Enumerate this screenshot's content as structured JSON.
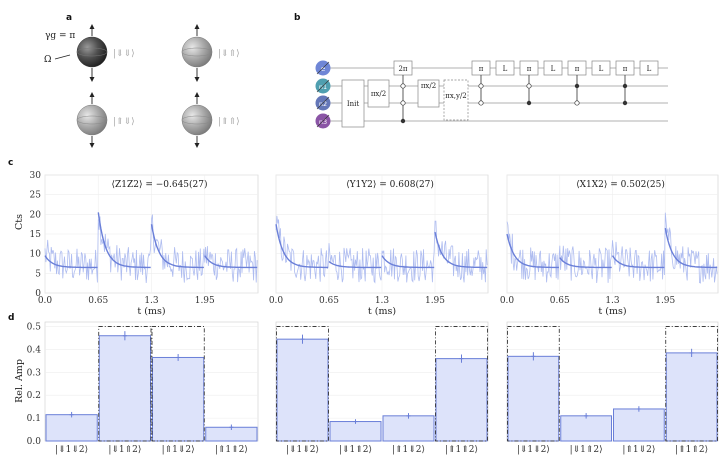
{
  "panels": {
    "a": "a",
    "b": "b",
    "c": "c",
    "d": "d"
  },
  "panel_a": {
    "gamma_label": "γg = π",
    "omega_label": "Ω",
    "kets": [
      "|⇓⇓⟩",
      "|⇓⇑⟩",
      "|⇑⇓⟩",
      "|⇑⇑⟩"
    ],
    "colors": {
      "dark_sphere": "#4a4a4a",
      "grey_sphere": "#9a9a9a"
    }
  },
  "panel_b": {
    "qubits": [
      "e",
      "n1",
      "n2",
      "n3"
    ],
    "qubit_colors": [
      "#6f86d6",
      "#4f9fb0",
      "#6477b8",
      "#8b55a6"
    ],
    "gates": {
      "init": "Init",
      "pi_x_half": "πx/2",
      "two_pi": "2π",
      "pi_x_half_2": "πx/2",
      "pi_xy_half": "πx,y/2",
      "pi": "π",
      "L": "L"
    }
  },
  "chart_data": [
    {
      "type": "line",
      "panel": "c",
      "annotation": "⟨Z1Z2⟩ = −0.645(27)",
      "xlabel": "t (ms)",
      "ylabel": "Cts",
      "xticks": [
        "0.0",
        "0.65",
        "1.3",
        "1.95"
      ],
      "yticks": [
        0,
        5,
        10,
        15,
        20,
        25,
        30
      ],
      "xlim": [
        0,
        2.6
      ],
      "ylim": [
        0,
        30
      ],
      "segments": [
        {
          "start": 0.0,
          "peak": 9.5,
          "baseline": 6.5
        },
        {
          "start": 0.65,
          "peak": 20.5,
          "baseline": 6.5
        },
        {
          "start": 1.3,
          "peak": 17.5,
          "baseline": 6.5
        },
        {
          "start": 1.95,
          "peak": 9.5,
          "baseline": 6.5
        }
      ],
      "colors": {
        "raw": "#aebcf0",
        "fit": "#6a7fd8"
      }
    },
    {
      "type": "line",
      "panel": "c",
      "annotation": "⟨Y1Y2⟩ = 0.608(27)",
      "xlabel": "t (ms)",
      "xticks": [
        "0.0",
        "0.65",
        "1.3",
        "1.95"
      ],
      "xlim": [
        0,
        2.6
      ],
      "ylim": [
        0,
        30
      ],
      "segments": [
        {
          "start": 0.0,
          "peak": 17.5,
          "baseline": 6.5
        },
        {
          "start": 0.65,
          "peak": 8.0,
          "baseline": 6.5
        },
        {
          "start": 1.3,
          "peak": 9.5,
          "baseline": 6.5
        },
        {
          "start": 1.95,
          "peak": 15.5,
          "baseline": 6.5
        }
      ],
      "colors": {
        "raw": "#aebcf0",
        "fit": "#6a7fd8"
      }
    },
    {
      "type": "line",
      "panel": "c",
      "annotation": "⟨X1X2⟩ = 0.502(25)",
      "xlabel": "t (ms)",
      "xticks": [
        "0.0",
        "0.65",
        "1.3",
        "1.95"
      ],
      "xlim": [
        0,
        2.6
      ],
      "ylim": [
        0,
        30
      ],
      "segments": [
        {
          "start": 0.0,
          "peak": 15.0,
          "baseline": 6.5
        },
        {
          "start": 0.65,
          "peak": 9.0,
          "baseline": 6.5
        },
        {
          "start": 1.3,
          "peak": 9.5,
          "baseline": 6.5
        },
        {
          "start": 1.95,
          "peak": 16.5,
          "baseline": 6.5
        }
      ],
      "colors": {
        "raw": "#aebcf0",
        "fit": "#6a7fd8"
      }
    },
    {
      "type": "bar",
      "panel": "d",
      "categories": [
        "|⇓1⇓2⟩",
        "|⇓1⇑2⟩",
        "|⇑1⇓2⟩",
        "|⇑1⇑2⟩"
      ],
      "values": [
        0.115,
        0.46,
        0.365,
        0.06
      ],
      "errors": [
        0.012,
        0.02,
        0.015,
        0.012
      ],
      "ideal": [
        0,
        0.5,
        0.5,
        0
      ],
      "ylabel": "Rel. Amp",
      "yticks": [
        "0.0",
        "0.1",
        "0.2",
        "0.3",
        "0.4",
        "0.5"
      ],
      "ylim": [
        0,
        0.52
      ],
      "colors": {
        "fill": "#dde3fa",
        "edge": "#6a7fd8",
        "err": "#6a7fd8"
      }
    },
    {
      "type": "bar",
      "panel": "d",
      "categories": [
        "|⇓1⇓2⟩",
        "|⇓1⇑2⟩",
        "|⇑1⇓2⟩",
        "|⇑1⇑2⟩"
      ],
      "values": [
        0.445,
        0.085,
        0.11,
        0.36
      ],
      "errors": [
        0.02,
        0.01,
        0.012,
        0.018
      ],
      "ideal": [
        0.5,
        0,
        0,
        0.5
      ],
      "ylim": [
        0,
        0.52
      ],
      "colors": {
        "fill": "#dde3fa",
        "edge": "#6a7fd8",
        "err": "#6a7fd8"
      }
    },
    {
      "type": "bar",
      "panel": "d",
      "categories": [
        "|⇓1⇓2⟩",
        "|⇓1⇑2⟩",
        "|⇑1⇓2⟩",
        "|⇑1⇑2⟩"
      ],
      "values": [
        0.37,
        0.11,
        0.14,
        0.385
      ],
      "errors": [
        0.018,
        0.012,
        0.012,
        0.018
      ],
      "ideal": [
        0.5,
        0,
        0,
        0.5
      ],
      "ylim": [
        0,
        0.52
      ],
      "colors": {
        "fill": "#dde3fa",
        "edge": "#6a7fd8",
        "err": "#6a7fd8"
      }
    }
  ]
}
